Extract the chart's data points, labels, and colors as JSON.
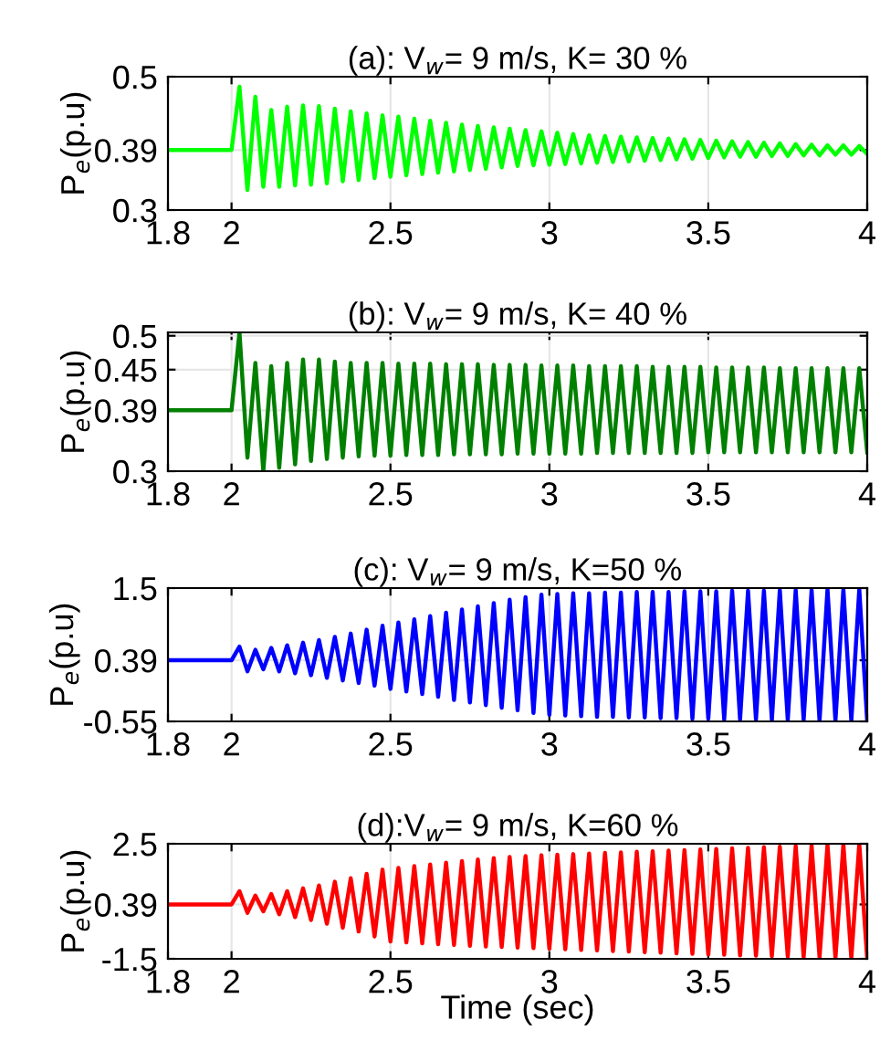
{
  "chart_data": [
    {
      "type": "line",
      "title": "(a): V$_{w}$= 9 m/s, K= 30 %",
      "ylabel": "P$_{e}$(p.u)",
      "xlim": [
        1.8,
        4
      ],
      "xticks": [
        1.8,
        2,
        2.5,
        3,
        3.5,
        4
      ],
      "ylim": [
        0.3,
        0.5
      ],
      "yticks": [
        0.3,
        0.39,
        0.5
      ],
      "grid": true,
      "x": [
        1.8,
        2.0,
        2.025,
        2.05,
        2.075,
        2.1,
        2.125,
        2.15,
        2.175,
        2.2,
        2.225,
        2.25,
        2.275,
        2.3,
        2.325,
        2.35,
        2.375,
        2.4,
        2.425,
        2.45,
        2.475,
        2.5,
        2.525,
        2.55,
        2.575,
        2.6,
        2.625,
        2.65,
        2.675,
        2.7,
        2.725,
        2.75,
        2.775,
        2.8,
        2.825,
        2.85,
        2.875,
        2.9,
        2.925,
        2.95,
        2.975,
        3.0,
        3.025,
        3.05,
        3.075,
        3.1,
        3.125,
        3.15,
        3.175,
        3.2,
        3.225,
        3.25,
        3.275,
        3.3,
        3.325,
        3.35,
        3.375,
        3.4,
        3.425,
        3.45,
        3.475,
        3.5,
        3.525,
        3.55,
        3.575,
        3.6,
        3.625,
        3.65,
        3.675,
        3.7,
        3.725,
        3.75,
        3.775,
        3.8,
        3.825,
        3.85,
        3.875,
        3.9,
        3.925,
        3.95,
        3.975,
        4.0
      ],
      "series": [
        {
          "color": "#00ff00",
          "values": [
            0.39,
            0.39,
            0.485,
            0.33,
            0.47,
            0.335,
            0.45,
            0.335,
            0.455,
            0.337,
            0.457,
            0.338,
            0.456,
            0.34,
            0.452,
            0.343,
            0.448,
            0.345,
            0.445,
            0.348,
            0.442,
            0.35,
            0.44,
            0.352,
            0.437,
            0.354,
            0.434,
            0.356,
            0.431,
            0.358,
            0.428,
            0.36,
            0.426,
            0.362,
            0.424,
            0.364,
            0.422,
            0.366,
            0.42,
            0.367,
            0.418,
            0.368,
            0.416,
            0.369,
            0.414,
            0.37,
            0.412,
            0.371,
            0.411,
            0.372,
            0.41,
            0.373,
            0.409,
            0.374,
            0.408,
            0.375,
            0.407,
            0.376,
            0.406,
            0.377,
            0.405,
            0.378,
            0.404,
            0.379,
            0.403,
            0.38,
            0.402,
            0.38,
            0.401,
            0.381,
            0.4,
            0.381,
            0.399,
            0.382,
            0.398,
            0.382,
            0.397,
            0.383,
            0.397,
            0.383,
            0.396,
            0.384
          ]
        }
      ]
    },
    {
      "type": "line",
      "title": "(b): V$_{w}$= 9 m/s, K= 40 %",
      "ylabel": "P$_{e}$(p.u)",
      "xlim": [
        1.8,
        4
      ],
      "xticks": [
        1.8,
        2,
        2.5,
        3,
        3.5,
        4
      ],
      "ylim": [
        0.3,
        0.505
      ],
      "yticks": [
        0.3,
        0.39,
        0.45,
        0.5
      ],
      "grid": true,
      "x": [
        1.8,
        2.0,
        2.025,
        2.05,
        2.075,
        2.1,
        2.125,
        2.15,
        2.175,
        2.2,
        2.225,
        2.25,
        2.275,
        2.3,
        2.325,
        2.35,
        2.375,
        2.4,
        2.425,
        2.45,
        2.475,
        2.5,
        2.525,
        2.55,
        2.575,
        2.6,
        2.625,
        2.65,
        2.675,
        2.7,
        2.725,
        2.75,
        2.775,
        2.8,
        2.825,
        2.85,
        2.875,
        2.9,
        2.925,
        2.95,
        2.975,
        3.0,
        3.025,
        3.05,
        3.075,
        3.1,
        3.125,
        3.15,
        3.175,
        3.2,
        3.225,
        3.25,
        3.275,
        3.3,
        3.325,
        3.35,
        3.375,
        3.4,
        3.425,
        3.45,
        3.475,
        3.5,
        3.525,
        3.55,
        3.575,
        3.6,
        3.625,
        3.65,
        3.675,
        3.7,
        3.725,
        3.75,
        3.775,
        3.8,
        3.825,
        3.85,
        3.875,
        3.9,
        3.925,
        3.95,
        3.975,
        4.0
      ],
      "series": [
        {
          "color": "#008000",
          "values": [
            0.39,
            0.39,
            0.505,
            0.32,
            0.46,
            0.3,
            0.455,
            0.305,
            0.46,
            0.31,
            0.465,
            0.315,
            0.465,
            0.318,
            0.462,
            0.32,
            0.46,
            0.322,
            0.46,
            0.323,
            0.46,
            0.323,
            0.459,
            0.324,
            0.459,
            0.324,
            0.459,
            0.324,
            0.458,
            0.325,
            0.458,
            0.325,
            0.458,
            0.325,
            0.457,
            0.325,
            0.457,
            0.326,
            0.457,
            0.326,
            0.456,
            0.326,
            0.456,
            0.326,
            0.456,
            0.326,
            0.455,
            0.327,
            0.455,
            0.327,
            0.455,
            0.327,
            0.455,
            0.327,
            0.454,
            0.327,
            0.454,
            0.327,
            0.454,
            0.327,
            0.454,
            0.328,
            0.453,
            0.328,
            0.453,
            0.328,
            0.453,
            0.328,
            0.453,
            0.328,
            0.452,
            0.328,
            0.452,
            0.328,
            0.452,
            0.328,
            0.452,
            0.328,
            0.452,
            0.328,
            0.452,
            0.328
          ]
        }
      ]
    },
    {
      "type": "line",
      "title": "(c): V$_{w}$= 9 m/s, K=50 %",
      "ylabel": "P$_{e}$(p.u)",
      "xlim": [
        1.8,
        4
      ],
      "xticks": [
        1.8,
        2,
        2.5,
        3,
        3.5,
        4
      ],
      "ylim": [
        -0.55,
        1.5
      ],
      "yticks": [
        -0.55,
        0.39,
        1.5
      ],
      "grid": true,
      "x": [
        1.8,
        2.0,
        2.025,
        2.05,
        2.075,
        2.1,
        2.125,
        2.15,
        2.175,
        2.2,
        2.225,
        2.25,
        2.275,
        2.3,
        2.325,
        2.35,
        2.375,
        2.4,
        2.425,
        2.45,
        2.475,
        2.5,
        2.525,
        2.55,
        2.575,
        2.6,
        2.625,
        2.65,
        2.675,
        2.7,
        2.725,
        2.75,
        2.775,
        2.8,
        2.825,
        2.85,
        2.875,
        2.9,
        2.925,
        2.95,
        2.975,
        3.0,
        3.025,
        3.05,
        3.075,
        3.1,
        3.125,
        3.15,
        3.175,
        3.2,
        3.225,
        3.25,
        3.275,
        3.3,
        3.325,
        3.35,
        3.375,
        3.4,
        3.425,
        3.45,
        3.475,
        3.5,
        3.525,
        3.55,
        3.575,
        3.6,
        3.625,
        3.65,
        3.675,
        3.7,
        3.725,
        3.75,
        3.775,
        3.8,
        3.825,
        3.85,
        3.875,
        3.9,
        3.925,
        3.95,
        3.975,
        4.0
      ],
      "series": [
        {
          "color": "#0000ff",
          "values": [
            0.39,
            0.39,
            0.6,
            0.22,
            0.55,
            0.25,
            0.58,
            0.22,
            0.62,
            0.19,
            0.66,
            0.16,
            0.7,
            0.12,
            0.75,
            0.08,
            0.8,
            0.04,
            0.86,
            0.0,
            0.92,
            -0.05,
            0.97,
            -0.09,
            1.02,
            -0.13,
            1.07,
            -0.17,
            1.12,
            -0.22,
            1.17,
            -0.26,
            1.22,
            -0.3,
            1.27,
            -0.34,
            1.32,
            -0.38,
            1.36,
            -0.42,
            1.4,
            -0.45,
            1.41,
            -0.46,
            1.42,
            -0.47,
            1.42,
            -0.48,
            1.43,
            -0.48,
            1.43,
            -0.49,
            1.44,
            -0.49,
            1.44,
            -0.5,
            1.44,
            -0.5,
            1.45,
            -0.51,
            1.45,
            -0.51,
            1.45,
            -0.52,
            1.46,
            -0.52,
            1.46,
            -0.52,
            1.46,
            -0.53,
            1.47,
            -0.53,
            1.47,
            -0.53,
            1.47,
            -0.54,
            1.48,
            -0.54,
            1.48,
            -0.54,
            1.48,
            -0.55
          ]
        }
      ]
    },
    {
      "type": "line",
      "title": "(d):V$_{w}$= 9 m/s, K=60 %",
      "ylabel": "P$_{e}$(p.u)",
      "xlabel": "Time (sec)",
      "xlim": [
        1.8,
        4
      ],
      "xticks": [
        1.8,
        2,
        2.5,
        3,
        3.5,
        4
      ],
      "ylim": [
        -1.5,
        2.5
      ],
      "yticks": [
        -1.5,
        0.39,
        2.5
      ],
      "grid": true,
      "x": [
        1.8,
        2.0,
        2.025,
        2.05,
        2.075,
        2.1,
        2.125,
        2.15,
        2.175,
        2.2,
        2.225,
        2.25,
        2.275,
        2.3,
        2.325,
        2.35,
        2.375,
        2.4,
        2.425,
        2.45,
        2.475,
        2.5,
        2.525,
        2.55,
        2.575,
        2.6,
        2.625,
        2.65,
        2.675,
        2.7,
        2.725,
        2.75,
        2.775,
        2.8,
        2.825,
        2.85,
        2.875,
        2.9,
        2.925,
        2.95,
        2.975,
        3.0,
        3.025,
        3.05,
        3.075,
        3.1,
        3.125,
        3.15,
        3.175,
        3.2,
        3.225,
        3.25,
        3.275,
        3.3,
        3.325,
        3.35,
        3.375,
        3.4,
        3.425,
        3.45,
        3.475,
        3.5,
        3.525,
        3.55,
        3.575,
        3.6,
        3.625,
        3.65,
        3.675,
        3.7,
        3.725,
        3.75,
        3.775,
        3.8,
        3.825,
        3.85,
        3.875,
        3.9,
        3.925,
        3.95,
        3.975,
        4.0
      ],
      "series": [
        {
          "color": "#ff0000",
          "values": [
            0.39,
            0.39,
            0.85,
            0.1,
            0.7,
            0.15,
            0.75,
            0.05,
            0.85,
            -0.05,
            0.95,
            -0.15,
            1.05,
            -0.28,
            1.18,
            -0.42,
            1.3,
            -0.55,
            1.45,
            -0.72,
            1.6,
            -0.9,
            1.66,
            -0.93,
            1.72,
            -0.96,
            1.78,
            -0.99,
            1.84,
            -1.02,
            1.9,
            -1.05,
            1.95,
            -1.07,
            2.0,
            -1.09,
            2.04,
            -1.11,
            2.07,
            -1.13,
            2.1,
            -1.15,
            2.12,
            -1.17,
            2.14,
            -1.19,
            2.16,
            -1.21,
            2.18,
            -1.23,
            2.2,
            -1.25,
            2.22,
            -1.27,
            2.24,
            -1.29,
            2.26,
            -1.31,
            2.28,
            -1.33,
            2.3,
            -1.35,
            2.32,
            -1.36,
            2.34,
            -1.38,
            2.36,
            -1.39,
            2.38,
            -1.41,
            2.4,
            -1.42,
            2.42,
            -1.44,
            2.44,
            -1.45,
            2.46,
            -1.47,
            2.48,
            -1.48,
            2.5,
            -1.5
          ]
        }
      ]
    }
  ]
}
